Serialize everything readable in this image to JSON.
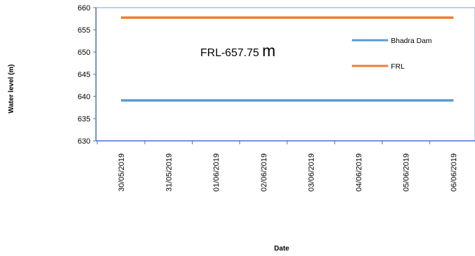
{
  "chart_data": {
    "type": "line",
    "title": "",
    "xlabel": "Date",
    "ylabel": "Water level (m)",
    "categories": [
      "30/05/2019",
      "31/05/2019",
      "01/06/2019",
      "02/06/2019",
      "03/06/2019",
      "04/06/2019",
      "05/06/2019",
      "06/06/2019"
    ],
    "y_ticks": [
      "630",
      "635",
      "640",
      "645",
      "650",
      "655",
      "660"
    ],
    "ylim": [
      630,
      660
    ],
    "grid": false,
    "legend_position": "right",
    "series": [
      {
        "name": "Bhadra Dam",
        "color": "#5B9BD5",
        "values": [
          639.1,
          639.1,
          639.1,
          639.1,
          639.1,
          639.1,
          639.1,
          639.1
        ]
      },
      {
        "name": "FRL",
        "color": "#ED7D31",
        "values": [
          657.75,
          657.75,
          657.75,
          657.75,
          657.75,
          657.75,
          657.75,
          657.75
        ]
      }
    ],
    "annotation": {
      "text": "FRL-657.75 ",
      "unit": "m"
    }
  }
}
